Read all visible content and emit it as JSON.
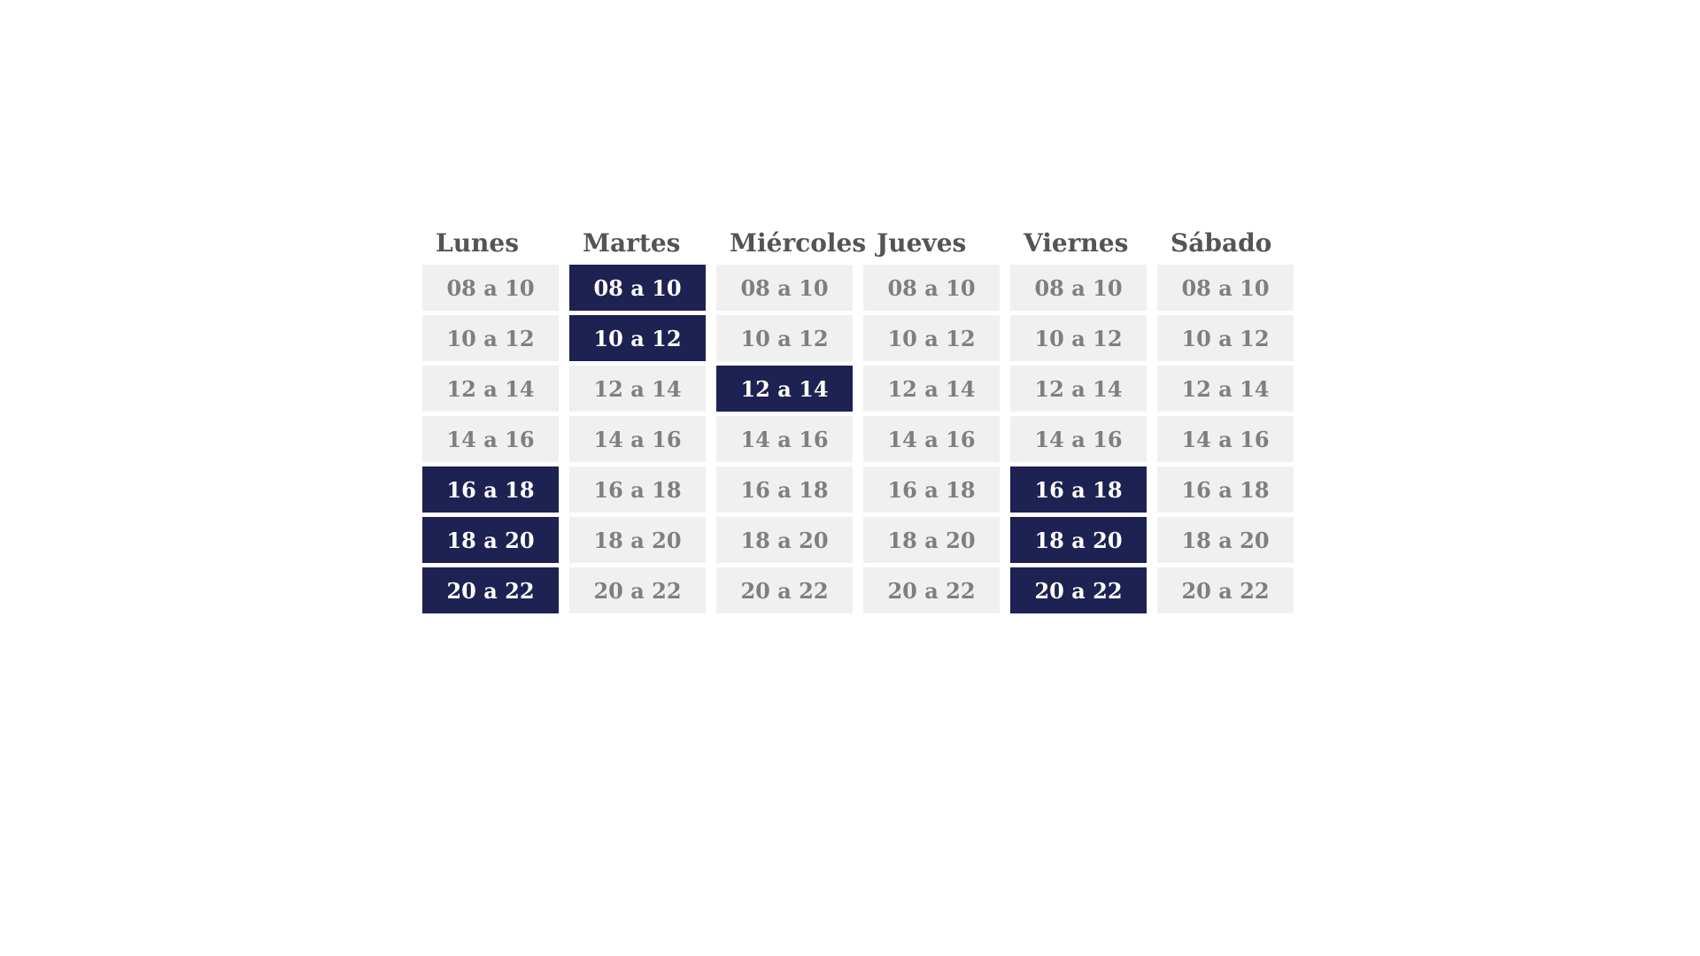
{
  "colors": {
    "selected_bg": "#1d2253",
    "selected_text": "#ffffff",
    "slot_bg": "#f0f0f0",
    "slot_text": "#7f7f7f",
    "header_text": "#545454"
  },
  "days": [
    {
      "name": "Lunes",
      "slots": [
        {
          "label": "08 a 10",
          "selected": false
        },
        {
          "label": "10 a 12",
          "selected": false
        },
        {
          "label": "12 a 14",
          "selected": false
        },
        {
          "label": "14 a 16",
          "selected": false
        },
        {
          "label": "16 a 18",
          "selected": true
        },
        {
          "label": "18 a 20",
          "selected": true
        },
        {
          "label": "20 a 22",
          "selected": true
        }
      ]
    },
    {
      "name": "Martes",
      "slots": [
        {
          "label": "08 a 10",
          "selected": true
        },
        {
          "label": "10 a 12",
          "selected": true
        },
        {
          "label": "12 a 14",
          "selected": false
        },
        {
          "label": "14 a 16",
          "selected": false
        },
        {
          "label": "16 a 18",
          "selected": false
        },
        {
          "label": "18 a 20",
          "selected": false
        },
        {
          "label": "20 a 22",
          "selected": false
        }
      ]
    },
    {
      "name": "Miércoles",
      "slots": [
        {
          "label": "08 a 10",
          "selected": false
        },
        {
          "label": "10 a 12",
          "selected": false
        },
        {
          "label": "12 a 14",
          "selected": true
        },
        {
          "label": "14 a 16",
          "selected": false
        },
        {
          "label": "16 a 18",
          "selected": false
        },
        {
          "label": "18 a 20",
          "selected": false
        },
        {
          "label": "20 a 22",
          "selected": false
        }
      ]
    },
    {
      "name": "Jueves",
      "slots": [
        {
          "label": "08 a 10",
          "selected": false
        },
        {
          "label": "10 a 12",
          "selected": false
        },
        {
          "label": "12 a 14",
          "selected": false
        },
        {
          "label": "14 a 16",
          "selected": false
        },
        {
          "label": "16 a 18",
          "selected": false
        },
        {
          "label": "18 a 20",
          "selected": false
        },
        {
          "label": "20 a 22",
          "selected": false
        }
      ]
    },
    {
      "name": "Viernes",
      "slots": [
        {
          "label": "08 a 10",
          "selected": false
        },
        {
          "label": "10 a 12",
          "selected": false
        },
        {
          "label": "12 a 14",
          "selected": false
        },
        {
          "label": "14 a 16",
          "selected": false
        },
        {
          "label": "16 a 18",
          "selected": true
        },
        {
          "label": "18 a 20",
          "selected": true
        },
        {
          "label": "20 a 22",
          "selected": true
        }
      ]
    },
    {
      "name": "Sábado",
      "slots": [
        {
          "label": "08 a 10",
          "selected": false
        },
        {
          "label": "10 a 12",
          "selected": false
        },
        {
          "label": "12 a 14",
          "selected": false
        },
        {
          "label": "14 a 16",
          "selected": false
        },
        {
          "label": "16 a 18",
          "selected": false
        },
        {
          "label": "18 a 20",
          "selected": false
        },
        {
          "label": "20 a 22",
          "selected": false
        }
      ]
    }
  ]
}
